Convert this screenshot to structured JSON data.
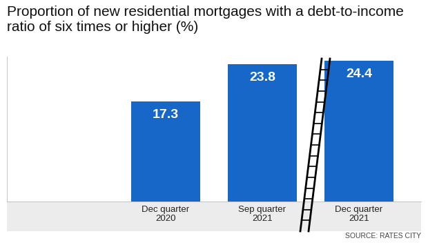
{
  "chart_data": {
    "type": "bar",
    "title": "Proportion of new residential mortgages with a debt-to-income ratio of six times or higher (%)",
    "categories": [
      "Dec quarter\n2020",
      "Sep quarter\n2021",
      "Dec quarter\n2021"
    ],
    "values": [
      17.3,
      23.8,
      24.4
    ],
    "color": "#1767c9",
    "ylim": [
      0,
      25
    ],
    "data_labels": true,
    "tick_labels": "x",
    "source": "SOURCE: RATES CITY"
  }
}
